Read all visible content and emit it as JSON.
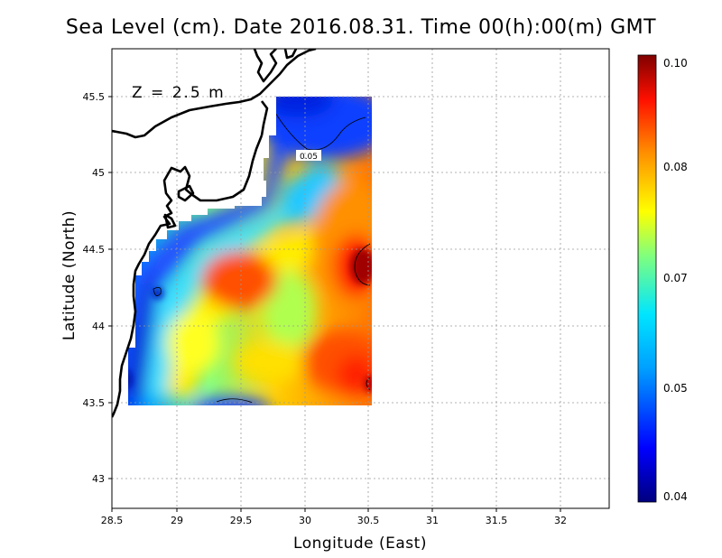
{
  "title": "Sea Level (cm). Date 2016.08.31. Time 00(h):00(m) GMT",
  "depth_label": "Z = 2.5 m",
  "x_axis": {
    "label": "Longitude (East)",
    "ticks": [
      "28.5",
      "29",
      "29.5",
      "30",
      "30.5",
      "31",
      "31.5",
      "32"
    ]
  },
  "y_axis": {
    "label": "Latitude (North)",
    "ticks": [
      "43",
      "43.5",
      "44",
      "44.5",
      "45",
      "45.5"
    ]
  },
  "contour_label": "0.05",
  "colorbar": {
    "ticks": [
      "0.04",
      "0.05",
      "0.07",
      "0.08",
      "0.10"
    ],
    "colors": [
      "#00007f",
      "#0000ff",
      "#00bfff",
      "#7fff7f",
      "#ffff00",
      "#ff8000",
      "#ff0000",
      "#7f0000"
    ]
  }
}
